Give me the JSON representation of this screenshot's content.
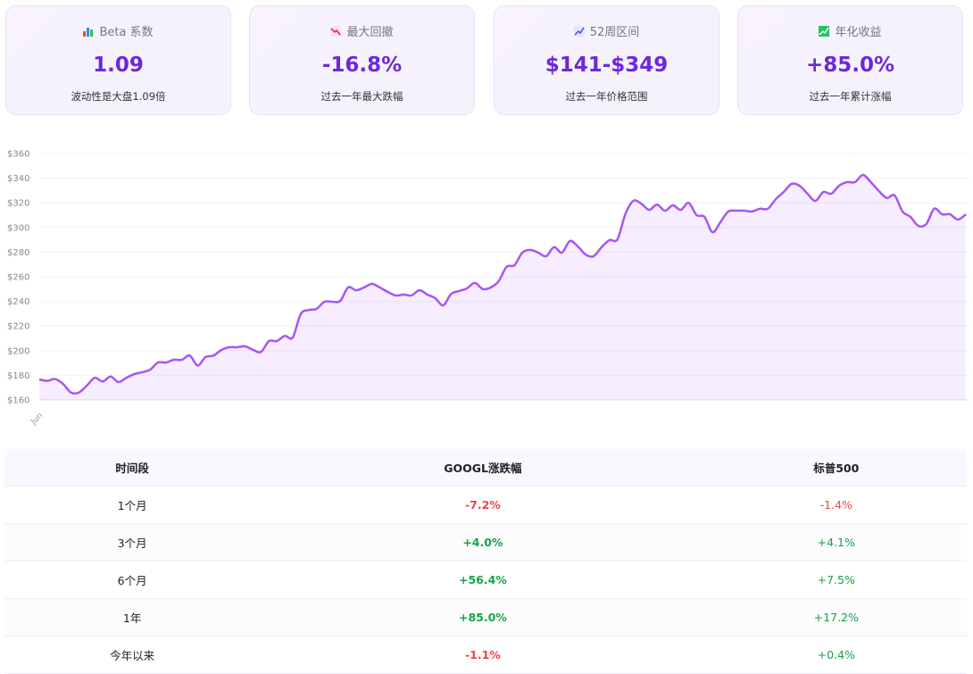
{
  "cards": [
    {
      "label": "Beta 系数",
      "value": "1.09",
      "note": "波动性是大盘1.09倍"
    },
    {
      "label": "最大回撤",
      "value": "-16.8%",
      "note": "过去一年最大跌幅"
    },
    {
      "label": "52周区间",
      "value": "$141-$349",
      "note": "过去一年价格范围"
    },
    {
      "label": "年化收益",
      "value": "+85.0%",
      "note": "过去一年累计涨幅"
    }
  ],
  "chart_data": {
    "type": "line",
    "color": "#a855f7",
    "area": true,
    "grid": true,
    "categories": [
      "Jun",
      null,
      null,
      null,
      null,
      null,
      null,
      null,
      null,
      null,
      null,
      null,
      null,
      null,
      null,
      null,
      null,
      null,
      null,
      null,
      null,
      null,
      null,
      null,
      null,
      null,
      null,
      null,
      null,
      null,
      null,
      null,
      null,
      null,
      null,
      null,
      null,
      null,
      null,
      null,
      null,
      null,
      null,
      null,
      null,
      null,
      null,
      null,
      null,
      null,
      null,
      null,
      null,
      null,
      null,
      null,
      null,
      null,
      null,
      null,
      null,
      null,
      null,
      null,
      null,
      null,
      null,
      null,
      null,
      null,
      null,
      null,
      null,
      null,
      null,
      null,
      null,
      null,
      null,
      null,
      null,
      null,
      null,
      null,
      null,
      null,
      null,
      null,
      null,
      null,
      null,
      null,
      null,
      null,
      null,
      null,
      null,
      null,
      null,
      null,
      null,
      null,
      null,
      null,
      null,
      null,
      null,
      null,
      null,
      null,
      null,
      null,
      null,
      null,
      null,
      null,
      null,
      null
    ],
    "values": [
      176.7,
      175.5,
      177,
      173,
      166,
      166,
      171.6,
      178,
      175,
      179,
      174.5,
      178,
      181,
      182.5,
      184.6,
      190.4,
      190.4,
      192.6,
      192.6,
      196,
      188,
      194.8,
      196,
      200.6,
      202.8,
      202.8,
      203.5,
      200.6,
      199,
      207.8,
      207.8,
      212,
      210.7,
      229.6,
      233,
      233.9,
      239.7,
      239.7,
      240.4,
      251.3,
      249,
      251.3,
      254.2,
      251.3,
      247.7,
      244.8,
      245.5,
      244.8,
      249,
      245.5,
      242.6,
      236.8,
      246,
      248.4,
      250.6,
      255,
      250,
      251.3,
      256.4,
      268,
      269.4,
      279.6,
      281.7,
      279.6,
      276.7,
      284,
      279.6,
      289,
      284.6,
      278,
      276.7,
      284,
      289.7,
      290.4,
      310.7,
      321.6,
      319.4,
      314.3,
      318.6,
      313.6,
      318,
      314.3,
      320,
      310,
      308.6,
      296.2,
      304.2,
      313,
      313.6,
      313.6,
      313,
      315.2,
      315.2,
      323,
      328.8,
      335.4,
      333.9,
      327.4,
      321.6,
      328.8,
      327.4,
      333.9,
      336.8,
      336.8,
      342.6,
      336.8,
      329.7,
      324,
      326,
      313,
      308.6,
      301.3,
      302.8,
      315.2,
      310.7,
      310.7,
      306.4,
      310.7
    ],
    "ylim": [
      160,
      360
    ],
    "yticks": [
      {
        "value": 160,
        "label": "$160"
      },
      {
        "value": 180,
        "label": "$180"
      },
      {
        "value": 200,
        "label": "$200"
      },
      {
        "value": 220,
        "label": "$220"
      },
      {
        "value": 240,
        "label": "$240"
      },
      {
        "value": 260,
        "label": "$260"
      },
      {
        "value": 280,
        "label": "$280"
      },
      {
        "value": 300,
        "label": "$300"
      },
      {
        "value": 320,
        "label": "$320"
      },
      {
        "value": 340,
        "label": "$340"
      },
      {
        "value": 360,
        "label": "$360"
      }
    ]
  },
  "table": {
    "header": [
      "时间段",
      "GOOGL涨跌幅",
      "标普500"
    ],
    "rows": [
      [
        "1个月",
        "-7.2%",
        "-1.4%"
      ],
      [
        "3个月",
        "+4.0%",
        "+4.1%"
      ],
      [
        "6个月",
        "+56.4%",
        "+7.5%"
      ],
      [
        "1年",
        "+85.0%",
        "+17.2%"
      ],
      [
        "今年以来",
        "-1.1%",
        "+0.4%"
      ]
    ]
  }
}
